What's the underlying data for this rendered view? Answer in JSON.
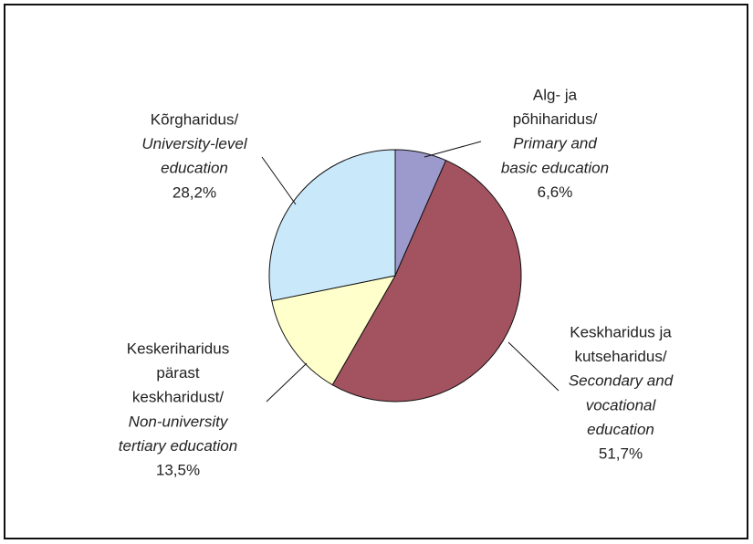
{
  "chart_data": {
    "type": "pie",
    "labels": [
      {
        "local": [
          "Alg- ja",
          "põhiharidus/"
        ],
        "english": [
          "Primary and",
          "basic education"
        ]
      },
      {
        "local": [
          "Keskharidus ja",
          "kutseharidus/"
        ],
        "english": [
          "Secondary and",
          "vocational",
          "education"
        ]
      },
      {
        "local": [
          "Keskeriharidus",
          "pärast",
          "keskharidust/"
        ],
        "english": [
          "Non-university",
          "tertiary education"
        ]
      },
      {
        "local": [
          "Kõrgharidus/"
        ],
        "english": [
          "University-level",
          "education"
        ]
      }
    ],
    "values": [
      6.6,
      51.7,
      13.5,
      28.2
    ],
    "value_labels": [
      "6,6%",
      "51,7%",
      "13,5%",
      "28,2%"
    ],
    "colors": [
      "#9c99cc",
      "#a3535f",
      "#ffffcc",
      "#c9e9fa"
    ]
  }
}
